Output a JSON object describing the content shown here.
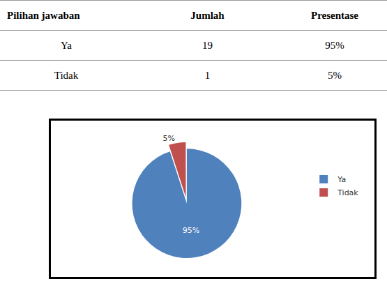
{
  "table": {
    "header": [
      "Pilihan jawaban",
      "Jumlah",
      "Presentase"
    ],
    "rows": [
      [
        "Ya",
        19,
        "95%"
      ],
      [
        "Tidak",
        1,
        "5%"
      ]
    ]
  },
  "chart_data": {
    "type": "pie",
    "categories": [
      "Ya",
      "Tidak"
    ],
    "values": [
      95,
      5
    ],
    "value_labels": [
      "95%",
      "5%"
    ],
    "colors": [
      "#4f81bd",
      "#c0504d"
    ],
    "data_labels": true,
    "legend": "right"
  }
}
